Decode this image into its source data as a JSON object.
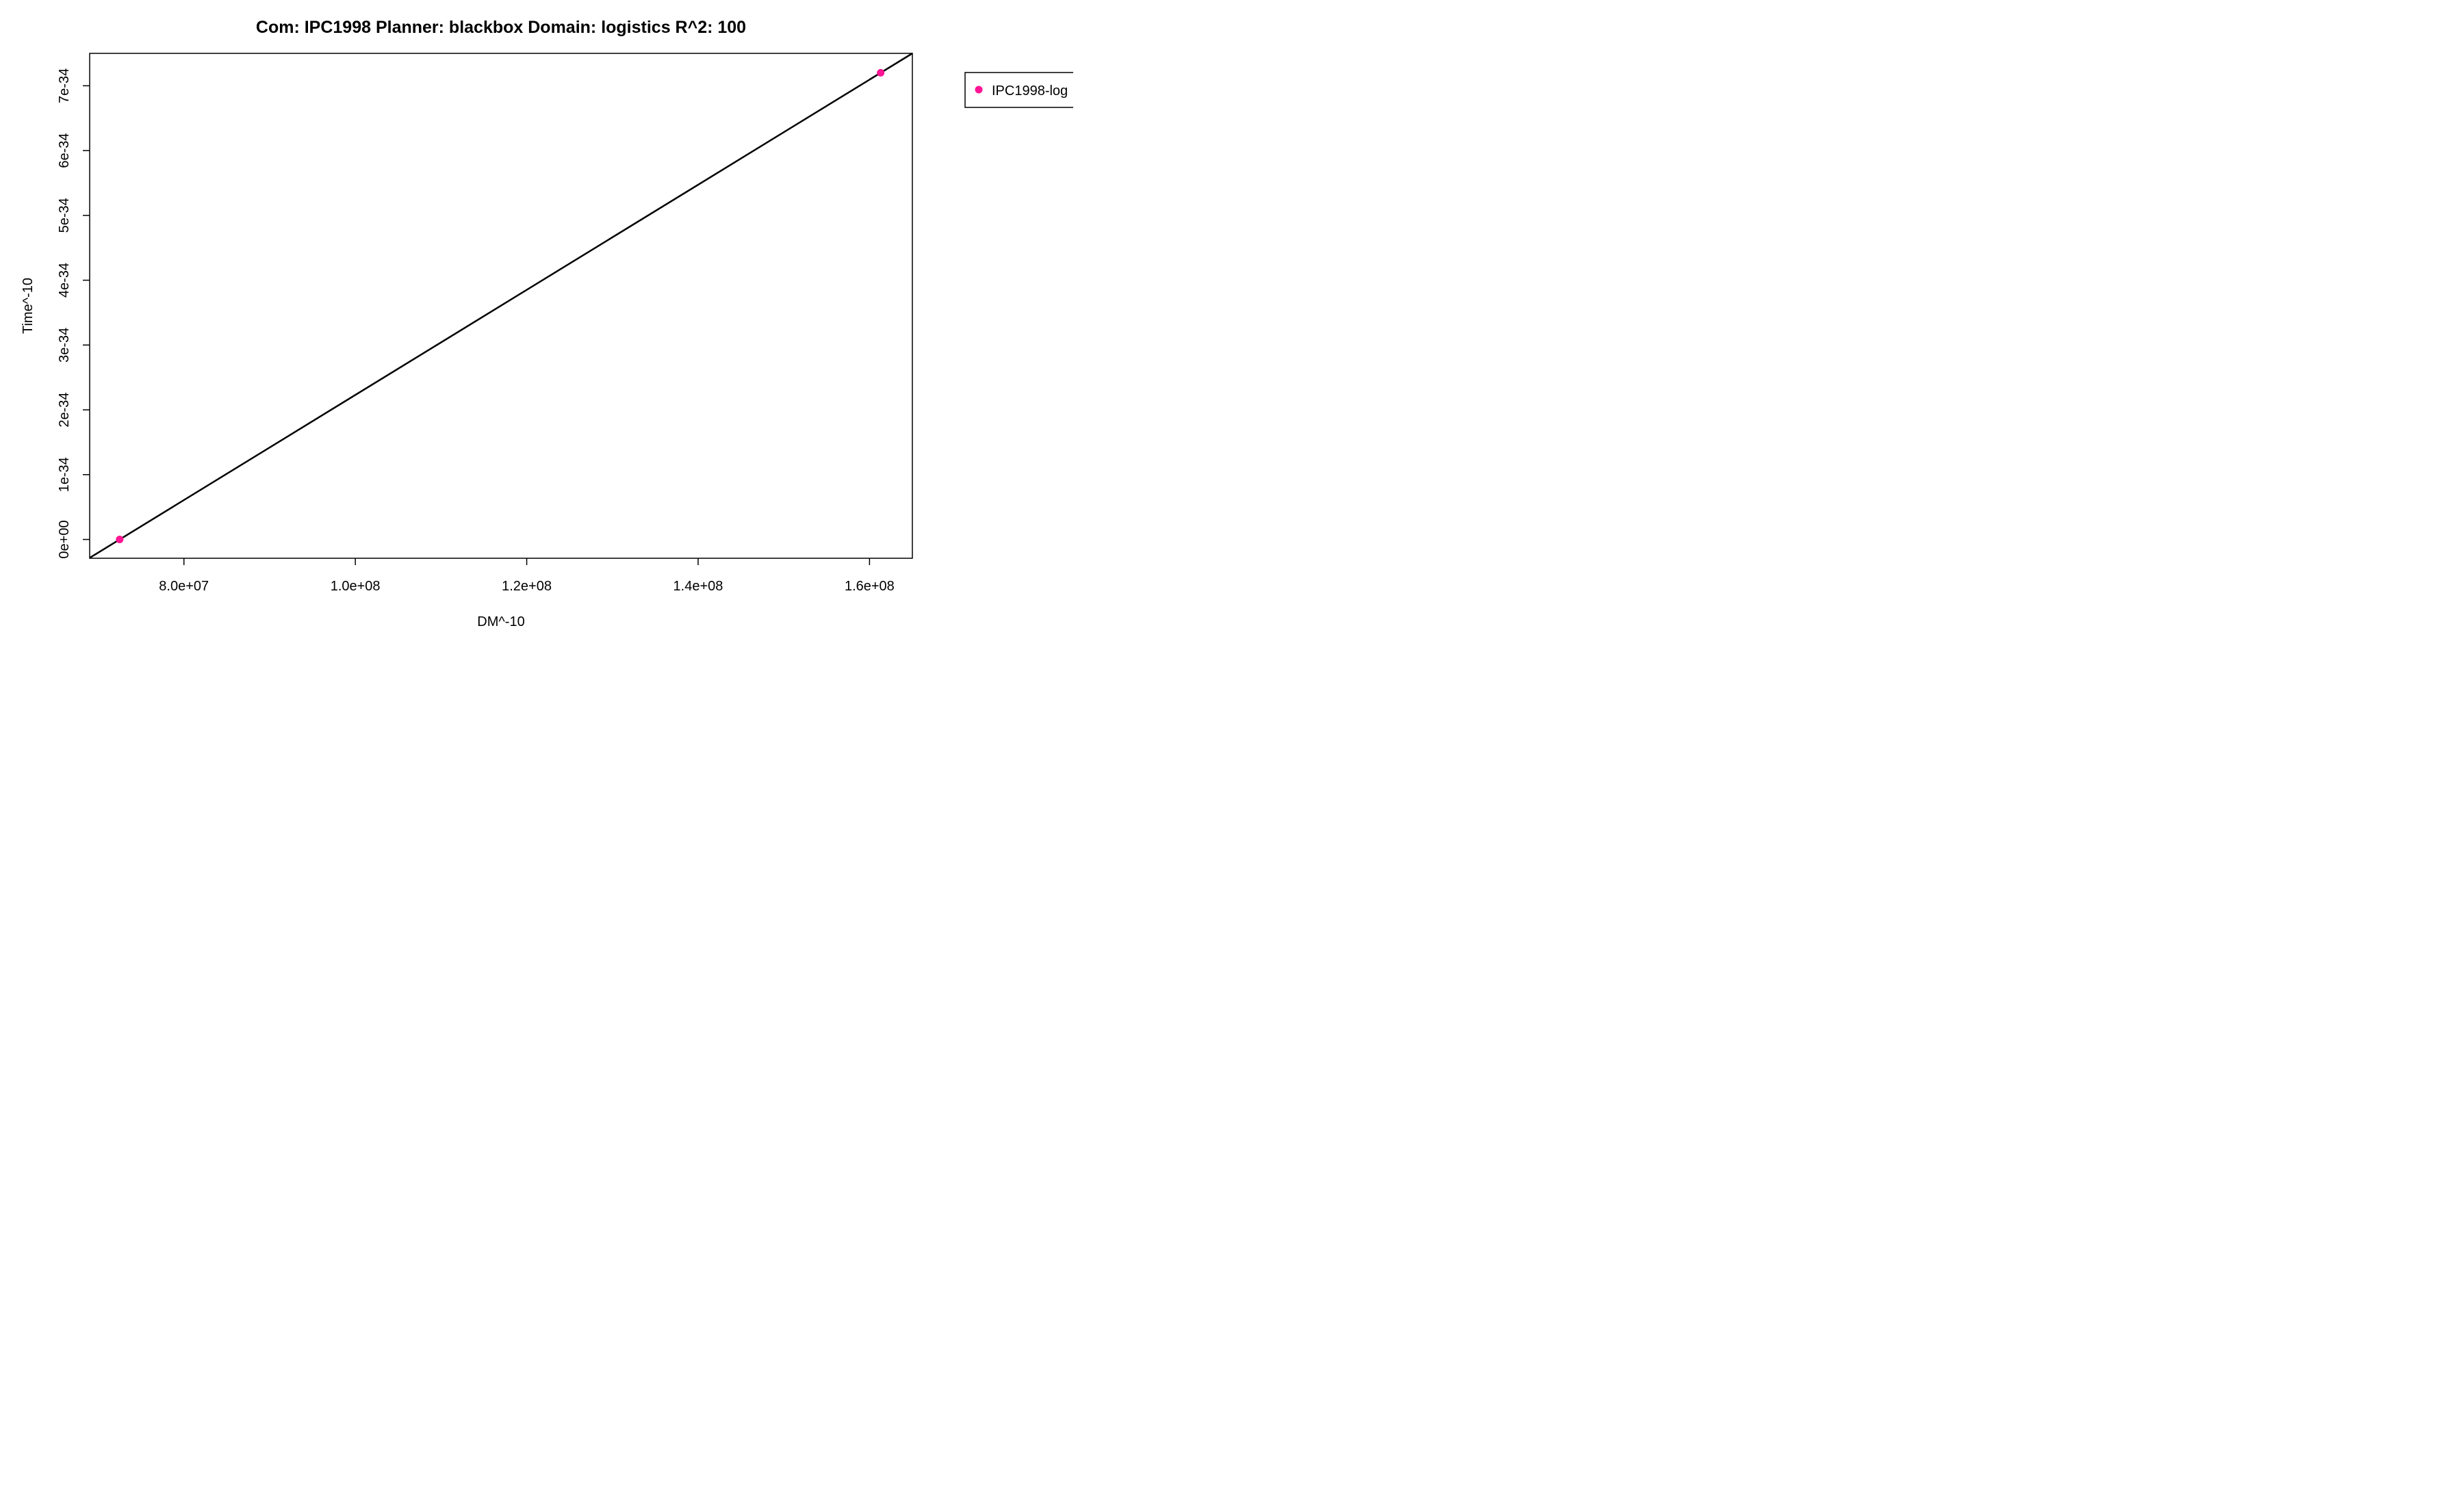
{
  "chart_data": {
    "type": "scatter",
    "title": "Com: IPC1998 Planner: blackbox Domain: logistics R^2: 100",
    "xlabel": "DM^-10",
    "ylabel": "Time^-10",
    "xlim": [
      69000000,
      165000000
    ],
    "ylim": [
      -2.9e-35,
      7.5e-34
    ],
    "x_ticks": [
      80000000,
      100000000,
      120000000,
      140000000,
      160000000
    ],
    "x_tick_labels": [
      "8.0e+07",
      "1.0e+08",
      "1.2e+08",
      "1.4e+08",
      "1.6e+08"
    ],
    "y_ticks": [
      0,
      1e-34,
      2e-34,
      3e-34,
      4e-34,
      5e-34,
      6e-34,
      7e-34
    ],
    "y_tick_labels": [
      "0e+00",
      "1e-34",
      "2e-34",
      "3e-34",
      "4e-34",
      "5e-34",
      "6e-34",
      "7e-34"
    ],
    "series": [
      {
        "name": "IPC1998-log",
        "color": "#ff1493",
        "x": [
          72500000,
          161300000
        ],
        "y": [
          0,
          7.2e-34
        ]
      }
    ],
    "fit_line": {
      "color": "#000000",
      "x": [
        69000000,
        165000000
      ],
      "y": [
        -2.84e-35,
        7.5e-34
      ]
    },
    "grid": false,
    "legend_position": "right"
  }
}
